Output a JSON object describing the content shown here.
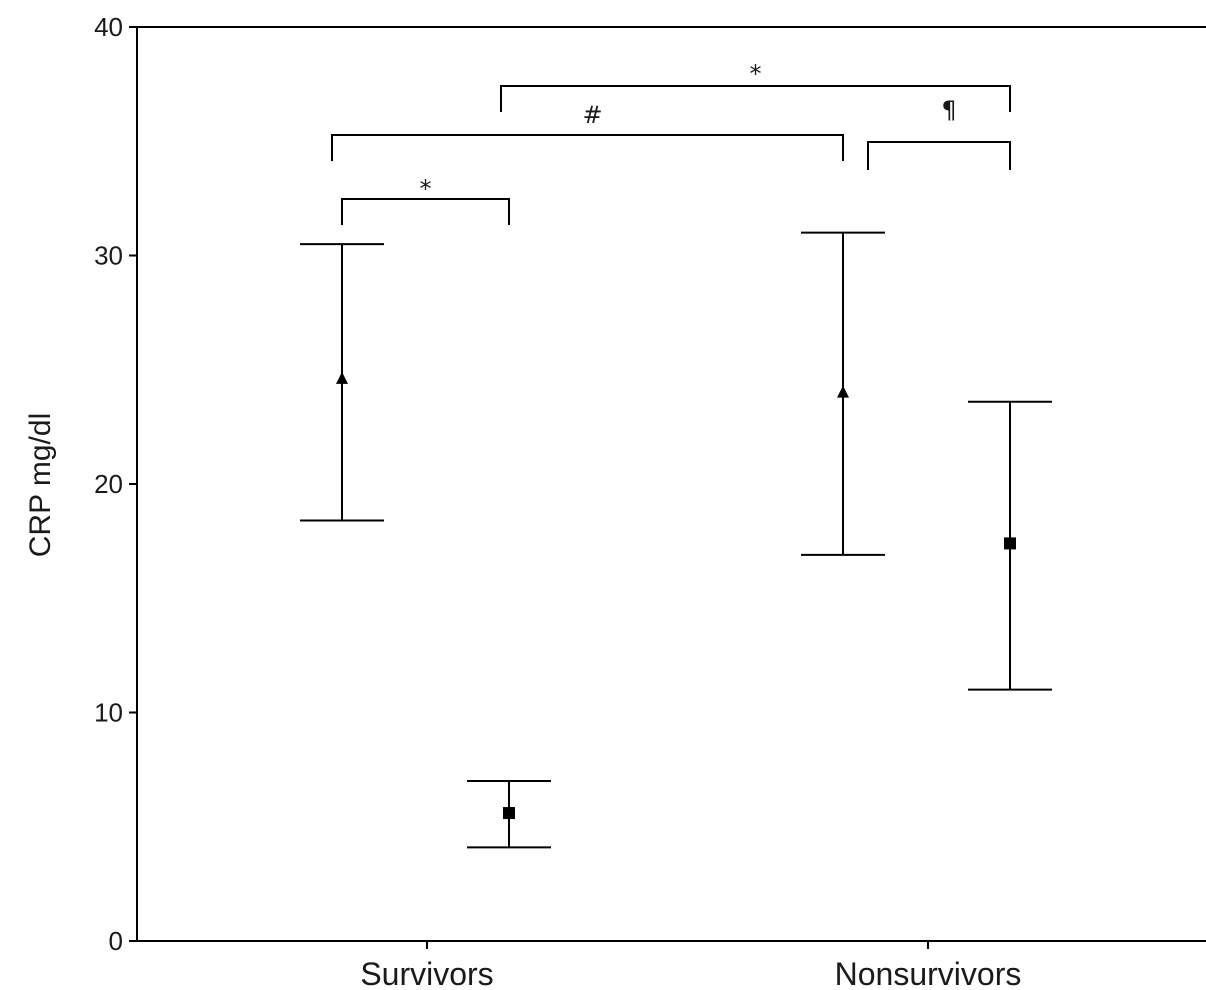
{
  "chart_data": {
    "type": "scatter",
    "ylabel": "CRP mg/dl",
    "xlabel": "",
    "ylim": [
      0,
      40
    ],
    "yticks": [
      0,
      10,
      20,
      30,
      40
    ],
    "categories": [
      "Survivors",
      "Nonsurvivors"
    ],
    "marker_shapes": [
      "triangle",
      "square"
    ],
    "points": [
      {
        "category": "Survivors",
        "marker": "triangle",
        "value": 24.6,
        "lower": 18.4,
        "upper": 30.5
      },
      {
        "category": "Survivors",
        "marker": "square",
        "value": 5.6,
        "lower": 4.1,
        "upper": 7.0
      },
      {
        "category": "Nonsurvivors",
        "marker": "triangle",
        "value": 24.0,
        "lower": 16.9,
        "upper": 31.0
      },
      {
        "category": "Nonsurvivors",
        "marker": "square",
        "value": 17.4,
        "lower": 11.0,
        "upper": 23.6
      }
    ],
    "significance": [
      {
        "label": "*",
        "from": "Survivors triangle",
        "to": "Survivors square"
      },
      {
        "label": "#",
        "from": "Survivors triangle",
        "to": "Nonsurvivors triangle"
      },
      {
        "label": "*",
        "from": "Survivors square",
        "to": "Nonsurvivors square"
      },
      {
        "label": "¶",
        "from": "Nonsurvivors triangle",
        "to": "Nonsurvivors square"
      }
    ],
    "grid": false,
    "legend": "none"
  },
  "colors": {
    "ink": "#000000",
    "text": "#1a1a1a",
    "background": "#ffffff"
  }
}
